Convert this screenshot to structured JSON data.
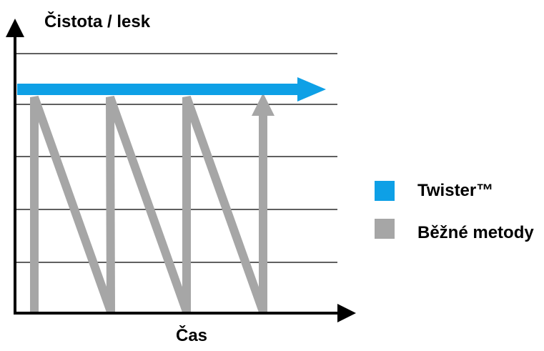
{
  "chart_data": {
    "type": "line",
    "ylabel": "Čistota / lesk",
    "xlabel": "Čas",
    "grid": true,
    "legend_position": "right",
    "series": [
      {
        "name": "Twister™",
        "color": "#0ea0e6",
        "style": "horizontal-arrow",
        "level": 0.85
      },
      {
        "name": "Běžné metody",
        "color": "#a6a6a6",
        "style": "sawtooth",
        "cycles": 3,
        "level": 0.8,
        "final_rise_arrow": true
      }
    ]
  }
}
